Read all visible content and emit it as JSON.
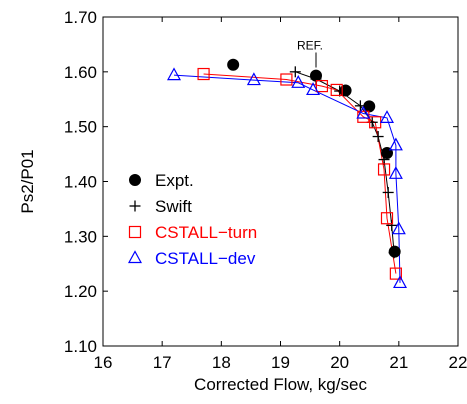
{
  "chart_data": {
    "type": "scatter",
    "title": "",
    "xlabel": "Corrected Flow, kg/sec",
    "ylabel": "Ps2/P01",
    "xlim": [
      16,
      22
    ],
    "ylim": [
      1.1,
      1.7
    ],
    "xticks": [
      16,
      17,
      18,
      19,
      20,
      21,
      22
    ],
    "xtick_labels": [
      "16",
      "17",
      "18",
      "19",
      "20",
      "21",
      "22"
    ],
    "yticks": [
      1.1,
      1.2,
      1.3,
      1.4,
      1.5,
      1.6,
      1.7
    ],
    "ytick_labels": [
      "1.10",
      "1.20",
      "1.30",
      "1.40",
      "1.50",
      "1.60",
      "1.70"
    ],
    "grid": false,
    "legend_position": "lower-left",
    "annotation": {
      "text": "REF.",
      "x": 19.6,
      "y": 1.597
    },
    "series": [
      {
        "name": "Expt.",
        "marker": "filled-circle",
        "color": "#000000",
        "line": false,
        "points": [
          {
            "x": 18.2,
            "y": 1.613
          },
          {
            "x": 19.6,
            "y": 1.593
          },
          {
            "x": 20.1,
            "y": 1.566
          },
          {
            "x": 20.5,
            "y": 1.537
          },
          {
            "x": 20.8,
            "y": 1.452
          },
          {
            "x": 20.93,
            "y": 1.272
          }
        ]
      },
      {
        "name": "Swift",
        "marker": "plus",
        "color": "#000000",
        "line": true,
        "points": [
          {
            "x": 19.25,
            "y": 1.6
          },
          {
            "x": 19.6,
            "y": 1.587
          },
          {
            "x": 20.0,
            "y": 1.565
          },
          {
            "x": 20.35,
            "y": 1.538
          },
          {
            "x": 20.55,
            "y": 1.508
          },
          {
            "x": 20.65,
            "y": 1.482
          },
          {
            "x": 20.75,
            "y": 1.44
          },
          {
            "x": 20.82,
            "y": 1.38
          },
          {
            "x": 20.88,
            "y": 1.32
          },
          {
            "x": 20.92,
            "y": 1.27
          }
        ]
      },
      {
        "name": "CSTALL−turn",
        "marker": "open-square",
        "color": "#ff0000",
        "line": true,
        "points": [
          {
            "x": 17.7,
            "y": 1.596
          },
          {
            "x": 19.1,
            "y": 1.586
          },
          {
            "x": 19.7,
            "y": 1.574
          },
          {
            "x": 19.95,
            "y": 1.567
          },
          {
            "x": 20.4,
            "y": 1.518
          },
          {
            "x": 20.6,
            "y": 1.508
          },
          {
            "x": 20.75,
            "y": 1.422
          },
          {
            "x": 20.8,
            "y": 1.333
          },
          {
            "x": 20.95,
            "y": 1.232
          }
        ]
      },
      {
        "name": "CSTALL−dev",
        "marker": "open-triangle",
        "color": "#0000ff",
        "line": true,
        "points": [
          {
            "x": 17.2,
            "y": 1.594
          },
          {
            "x": 18.55,
            "y": 1.585
          },
          {
            "x": 19.3,
            "y": 1.58
          },
          {
            "x": 19.55,
            "y": 1.567
          },
          {
            "x": 20.4,
            "y": 1.524
          },
          {
            "x": 20.8,
            "y": 1.516
          },
          {
            "x": 20.95,
            "y": 1.466
          },
          {
            "x": 20.95,
            "y": 1.414
          },
          {
            "x": 21.0,
            "y": 1.313
          },
          {
            "x": 21.02,
            "y": 1.215
          }
        ]
      }
    ]
  }
}
